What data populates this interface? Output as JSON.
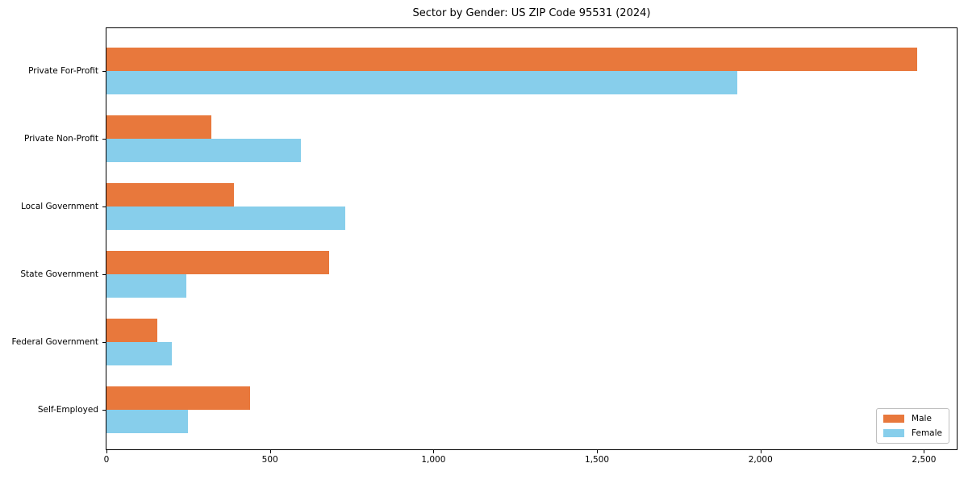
{
  "figure": {
    "background": "#ffffff"
  },
  "chart_data": {
    "type": "bar",
    "orientation": "horizontal",
    "title": "Sector by Gender: US ZIP Code 95531 (2024)",
    "categories": [
      "Private For-Profit",
      "Private Non-Profit",
      "Local Government",
      "State Government",
      "Federal Government",
      "Self-Employed"
    ],
    "series": [
      {
        "name": "Male",
        "color": "#e8783c",
        "values": [
          2480,
          320,
          390,
          680,
          155,
          440
        ]
      },
      {
        "name": "Female",
        "color": "#87ceeb",
        "values": [
          1930,
          595,
          730,
          245,
          200,
          250
        ]
      }
    ],
    "xlabel": "",
    "ylabel": "",
    "xlim": [
      0,
      2600
    ],
    "xticks": [
      0,
      500,
      1000,
      1500,
      2000,
      2500
    ],
    "xtick_labels": [
      "0",
      "500",
      "1,000",
      "1,500",
      "2,000",
      "2,500"
    ],
    "grid": false,
    "legend": {
      "position": "lower-right"
    }
  }
}
